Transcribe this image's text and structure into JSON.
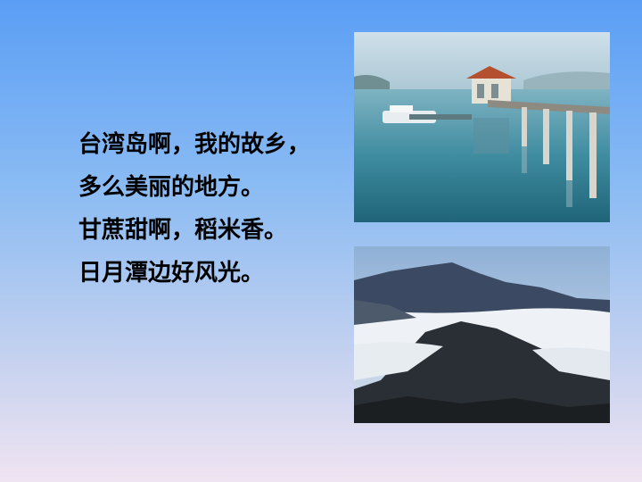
{
  "poem": {
    "lines": [
      "台湾岛啊，我的故乡，",
      "多么美丽的地方。",
      "甘蔗甜啊，稻米香。",
      "日月潭边好风光。"
    ]
  },
  "images": {
    "top": "lake pavilion pier photo",
    "bottom": "mountains above sea of clouds photo"
  },
  "colors": {
    "background_top": "#5a9ef5",
    "background_bottom": "#f0e4f2",
    "text": "#000000"
  }
}
